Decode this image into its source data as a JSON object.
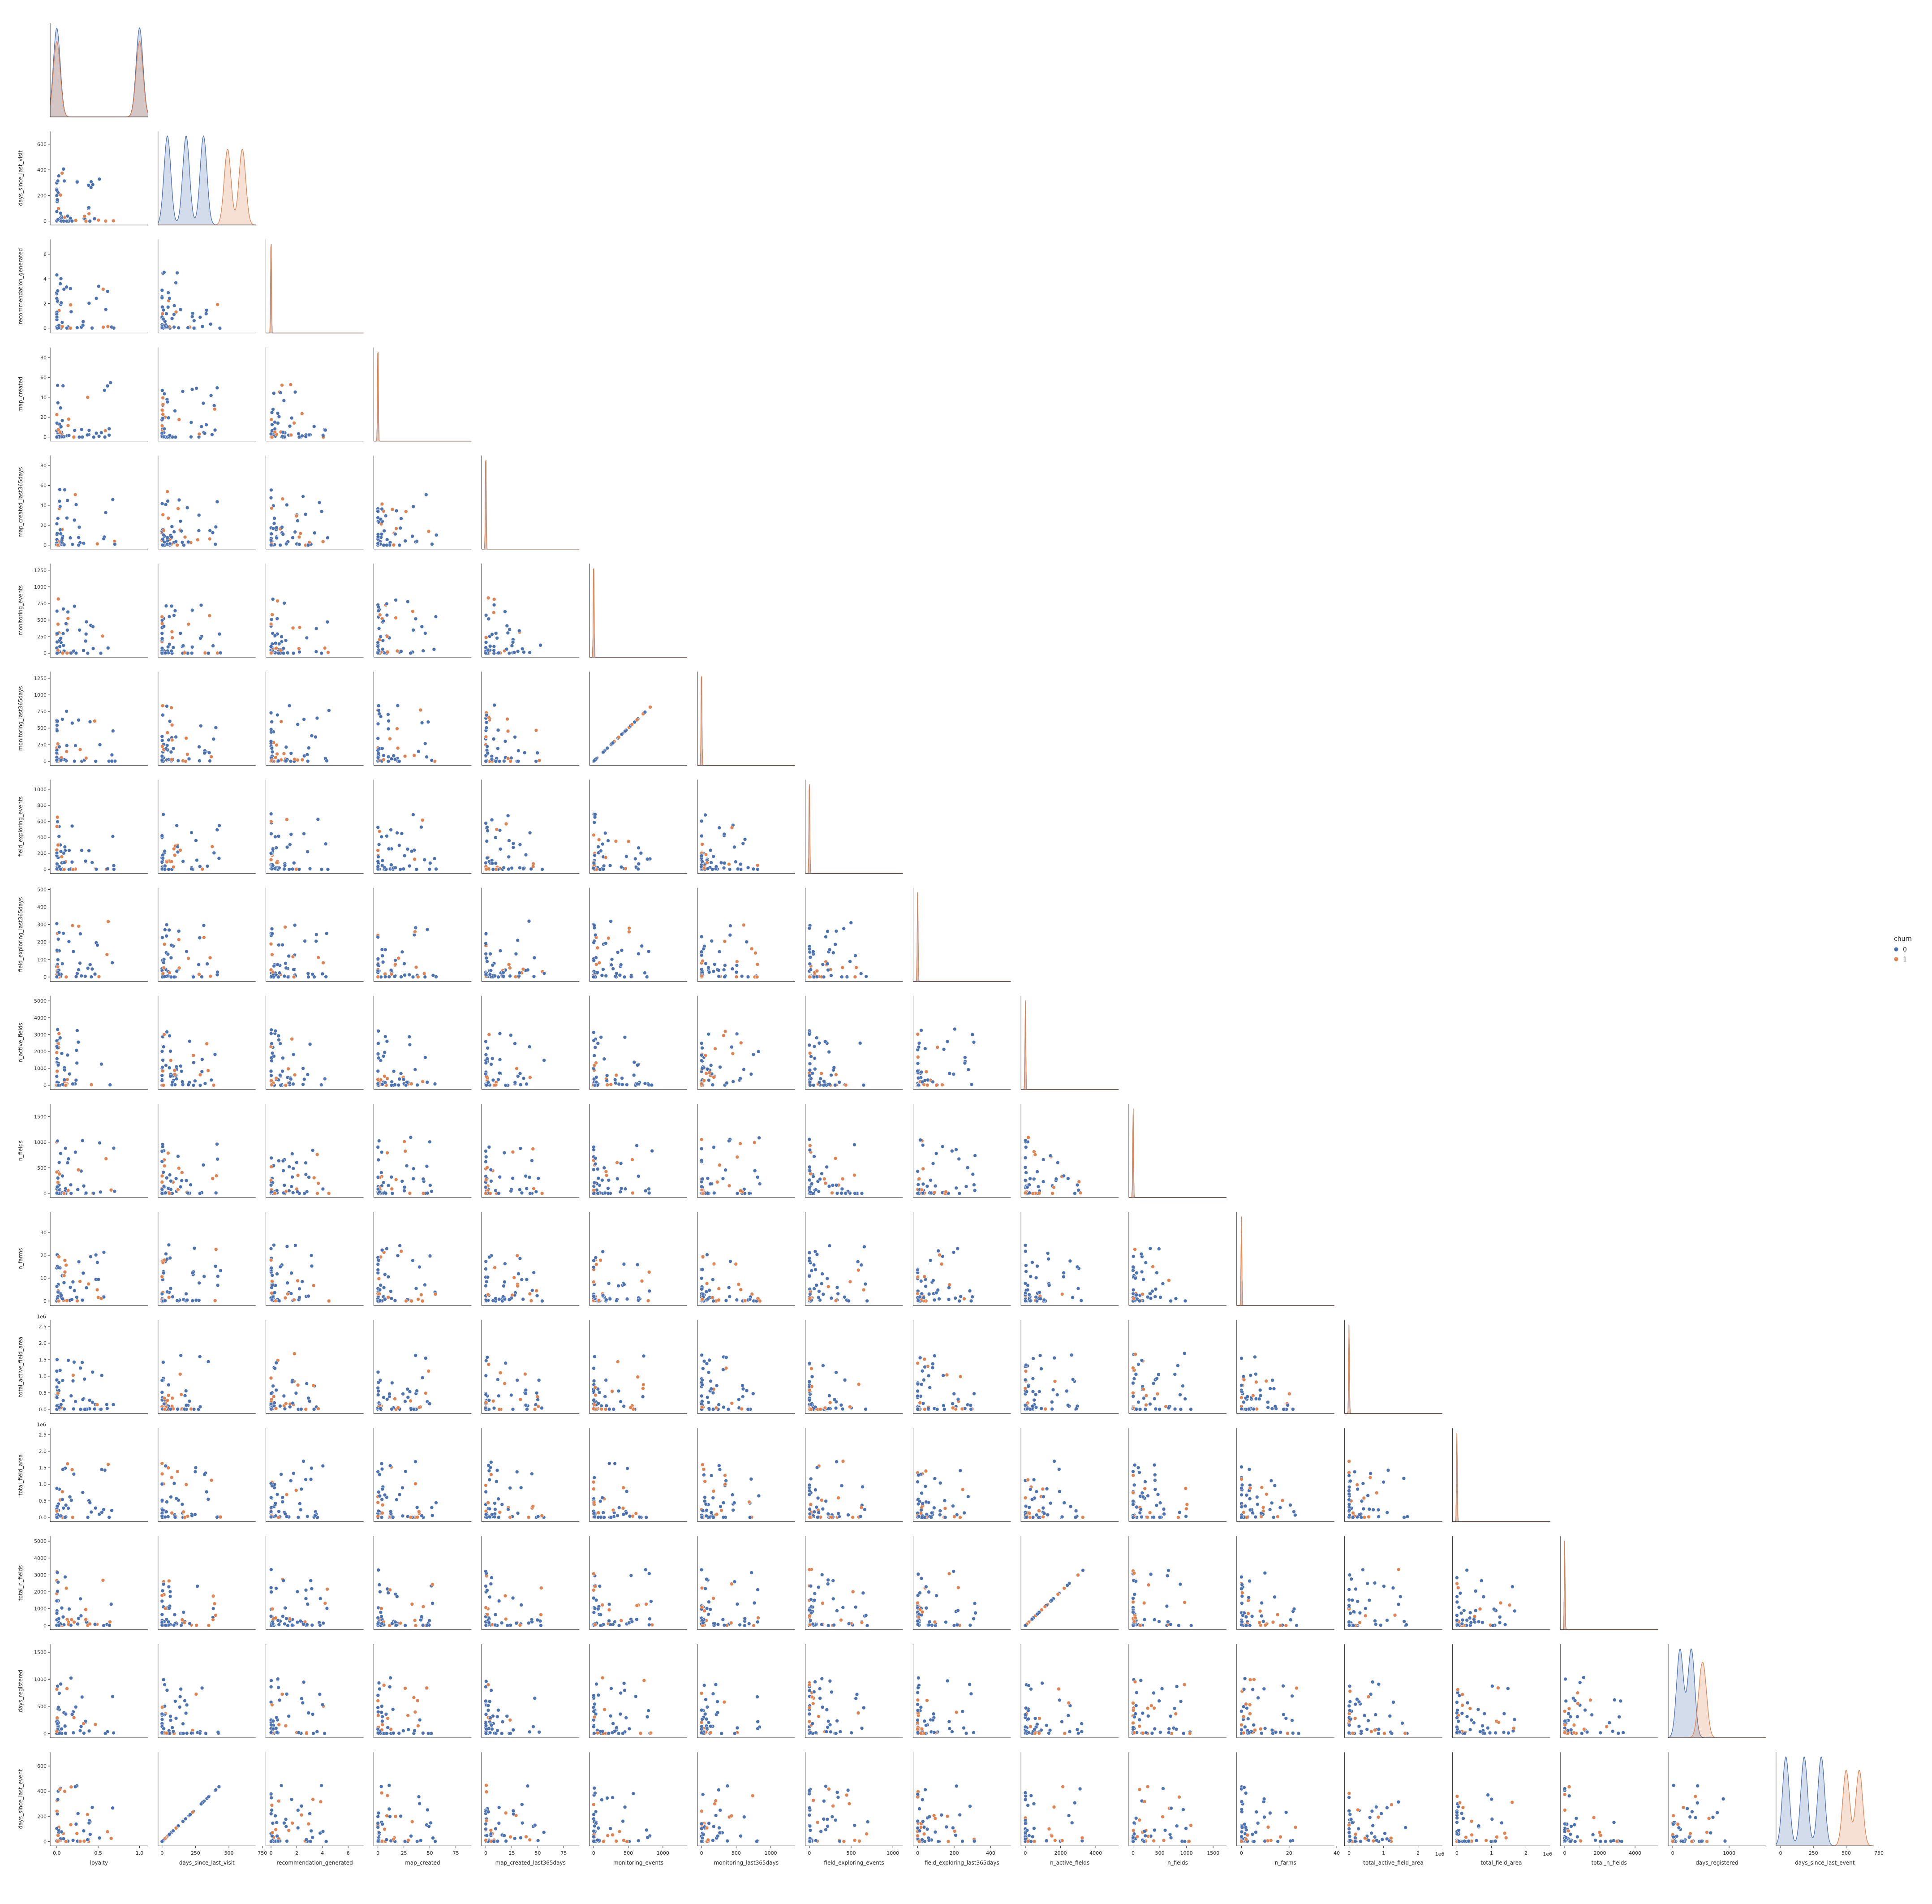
{
  "chart_data": {
    "type": "scatter",
    "title": "",
    "kind": "pairplot (lower triangle, kde diagonal)",
    "variables": [
      {
        "name": "loyalty",
        "lim": [
          -0.08,
          1.1
        ],
        "ticks": [
          0.0,
          0.5,
          1.0
        ],
        "tick_labels": [
          "0.0",
          "0.5",
          "1.0"
        ],
        "offset_label": ""
      },
      {
        "name": "days_since_last_visit",
        "lim": [
          -30,
          700
        ],
        "ticks": [
          0,
          200,
          400,
          600
        ],
        "tick_labels": [
          "0",
          "200",
          "400",
          "600"
        ],
        "xticks": [
          0,
          250,
          500,
          750
        ],
        "xtick_labels": [
          "0",
          "250",
          "500",
          "750"
        ],
        "offset_label": ""
      },
      {
        "name": "recommendation_generated",
        "lim": [
          -0.4,
          7.2
        ],
        "ticks": [
          0,
          2,
          4,
          6
        ],
        "tick_labels": [
          "0",
          "2",
          "4",
          "6"
        ],
        "offset_label": ""
      },
      {
        "name": "map_created",
        "lim": [
          -4,
          90
        ],
        "ticks": [
          0,
          20,
          40,
          60,
          80
        ],
        "tick_labels": [
          "0",
          "20",
          "40",
          "60",
          "80"
        ],
        "xticks": [
          0,
          25,
          50,
          75
        ],
        "xtick_labels": [
          "0",
          "25",
          "50",
          "75"
        ],
        "offset_label": ""
      },
      {
        "name": "map_created_last365days",
        "lim": [
          -4,
          90
        ],
        "ticks": [
          0,
          20,
          40,
          60,
          80
        ],
        "tick_labels": [
          "0",
          "20",
          "40",
          "60",
          "80"
        ],
        "xticks": [
          0,
          25,
          50,
          75
        ],
        "xtick_labels": [
          "0",
          "25",
          "50",
          "75"
        ],
        "offset_label": ""
      },
      {
        "name": "monitoring_events",
        "lim": [
          -60,
          1350
        ],
        "ticks": [
          0,
          250,
          500,
          750,
          1000,
          1250
        ],
        "tick_labels": [
          "0",
          "250",
          "500",
          "750",
          "1000",
          "1250"
        ],
        "xticks": [
          0,
          500,
          1000
        ],
        "xtick_labels": [
          "0",
          "500",
          "1000"
        ],
        "offset_label": ""
      },
      {
        "name": "monitoring_last365days",
        "lim": [
          -60,
          1350
        ],
        "ticks": [
          0,
          250,
          500,
          750,
          1000,
          1250
        ],
        "tick_labels": [
          "0",
          "250",
          "500",
          "750",
          "1000",
          "1250"
        ],
        "xticks": [
          0,
          500,
          1000
        ],
        "xtick_labels": [
          "0",
          "500",
          "1000"
        ],
        "offset_label": ""
      },
      {
        "name": "field_exploring_events",
        "lim": [
          -50,
          1120
        ],
        "ticks": [
          0,
          200,
          400,
          600,
          800,
          1000
        ],
        "tick_labels": [
          "0",
          "200",
          "400",
          "600",
          "800",
          "1000"
        ],
        "xticks": [
          0,
          500,
          1000
        ],
        "xtick_labels": [
          "0",
          "500",
          "1000"
        ],
        "offset_label": ""
      },
      {
        "name": "field_exploring_last365days",
        "lim": [
          -25,
          510
        ],
        "ticks": [
          0,
          100,
          200,
          300,
          400,
          500
        ],
        "tick_labels": [
          "0",
          "100",
          "200",
          "300",
          "400",
          "500"
        ],
        "xticks": [
          0,
          200,
          400
        ],
        "xtick_labels": [
          "0",
          "200",
          "400"
        ],
        "offset_label": ""
      },
      {
        "name": "n_active_fields",
        "lim": [
          -250,
          5300
        ],
        "ticks": [
          0,
          1000,
          2000,
          3000,
          4000,
          5000
        ],
        "tick_labels": [
          "0",
          "1000",
          "2000",
          "3000",
          "4000",
          "5000"
        ],
        "xticks": [
          0,
          2000,
          4000
        ],
        "xtick_labels": [
          "0",
          "2000",
          "4000"
        ],
        "offset_label": ""
      },
      {
        "name": "n_fields",
        "lim": [
          -80,
          1750
        ],
        "ticks": [
          0,
          500,
          1000,
          1500
        ],
        "tick_labels": [
          "0",
          "500",
          "1000",
          "1500"
        ],
        "offset_label": ""
      },
      {
        "name": "n_farms",
        "lim": [
          -2,
          39
        ],
        "ticks": [
          0,
          10,
          20,
          30
        ],
        "tick_labels": [
          "0",
          "10",
          "20",
          "30"
        ],
        "xticks": [
          0,
          20,
          40
        ],
        "xtick_labels": [
          "0",
          "20",
          "40"
        ],
        "offset_label": ""
      },
      {
        "name": "total_active_field_area",
        "lim": [
          -130000,
          2700000
        ],
        "ticks": [
          0,
          500000,
          1000000,
          1500000,
          2000000,
          2500000
        ],
        "tick_labels": [
          "0.0",
          "0.5",
          "1.0",
          "1.5",
          "2.0",
          "2.5"
        ],
        "xticks": [
          0,
          1000000,
          2000000
        ],
        "xtick_labels": [
          "0",
          "1",
          "2"
        ],
        "offset_label": "1e6"
      },
      {
        "name": "total_field_area",
        "lim": [
          -130000,
          2700000
        ],
        "ticks": [
          0,
          500000,
          1000000,
          1500000,
          2000000,
          2500000
        ],
        "tick_labels": [
          "0.0",
          "0.5",
          "1.0",
          "1.5",
          "2.0",
          "2.5"
        ],
        "xticks": [
          0,
          1000000,
          2000000
        ],
        "xtick_labels": [
          "0",
          "1",
          "2"
        ],
        "offset_label": "1e6"
      },
      {
        "name": "total_n_fields",
        "lim": [
          -250,
          5300
        ],
        "ticks": [
          0,
          1000,
          2000,
          3000,
          4000,
          5000
        ],
        "tick_labels": [
          "0",
          "1000",
          "2000",
          "3000",
          "4000",
          "5000"
        ],
        "xticks": [
          0,
          2000,
          4000
        ],
        "xtick_labels": [
          "0",
          "2000",
          "4000"
        ],
        "offset_label": ""
      },
      {
        "name": "days_registered",
        "lim": [
          -80,
          1650
        ],
        "ticks": [
          0,
          500,
          1000,
          1500
        ],
        "tick_labels": [
          "0",
          "500",
          "1000",
          "1500"
        ],
        "xticks": [
          0,
          1000
        ],
        "xtick_labels": [
          "0",
          "1000"
        ],
        "offset_label": ""
      },
      {
        "name": "days_since_last_event",
        "lim": [
          -35,
          710
        ],
        "ticks": [
          0,
          200,
          400,
          600
        ],
        "tick_labels": [
          "0",
          "200",
          "400",
          "600"
        ],
        "xticks": [
          0,
          250,
          500,
          750
        ],
        "xtick_labels": [
          "0",
          "250",
          "500",
          "750"
        ],
        "offset_label": ""
      }
    ],
    "legend": {
      "title": "churn",
      "placement": "right",
      "entries": [
        {
          "label": "0",
          "color": "#4c72b0"
        },
        {
          "label": "1",
          "color": "#dd8452"
        }
      ]
    },
    "series": [
      {
        "name": "0",
        "color": "#4c72b0"
      },
      {
        "name": "1",
        "color": "#dd8452"
      }
    ],
    "distribution_peaks": {
      "loyalty": {
        "0": [
          0,
          1
        ],
        "1": [
          0,
          1
        ]
      },
      "days_since_last_visit": {
        "0": [
          40,
          180,
          310
        ],
        "1": [
          490,
          600
        ]
      },
      "days_registered": {
        "0": [
          130,
          330
        ],
        "1": [
          500,
          560
        ]
      },
      "days_since_last_event": {
        "0": [
          40,
          180,
          310
        ],
        "1": [
          500,
          600
        ]
      }
    },
    "grid": false
  }
}
